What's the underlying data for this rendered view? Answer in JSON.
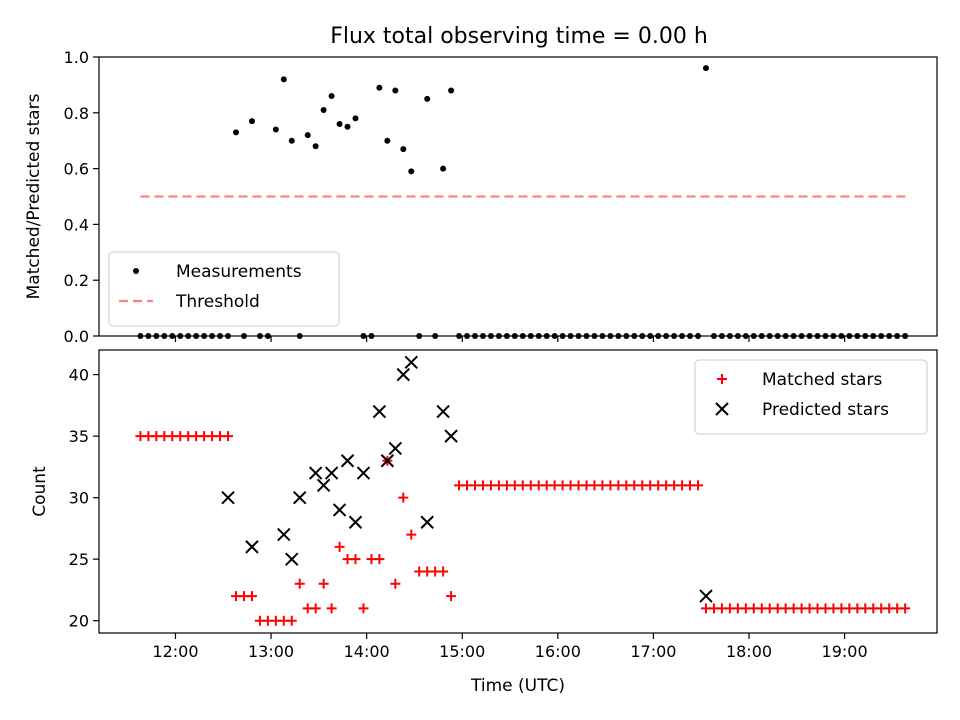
{
  "figure": {
    "title": "Flux total observing time = 0.00 h"
  },
  "chart_data": [
    {
      "type": "scatter",
      "title": "Flux total observing time = 0.00 h",
      "xlabel": "",
      "ylabel": "Matched/Predicted stars",
      "xlim": [
        "11:12",
        "19:58"
      ],
      "ylim": [
        0,
        1.0
      ],
      "yticks": [
        0.0,
        0.2,
        0.4,
        0.6,
        0.8,
        1.0
      ],
      "yticklabels": [
        "0.0",
        "0.2",
        "0.4",
        "0.6",
        "0.8",
        "1.0"
      ],
      "xticks": [
        "12:00",
        "13:00",
        "14:00",
        "15:00",
        "16:00",
        "17:00",
        "18:00",
        "19:00"
      ],
      "xticklabels": [],
      "legend": {
        "placement": "lower-left"
      },
      "series": [
        {
          "name": "Measurements",
          "kind": "scatter",
          "marker": "dot",
          "color": "#000000",
          "x": [
            "11:38",
            "11:43",
            "11:48",
            "11:53",
            "11:58",
            "12:03",
            "12:08",
            "12:13",
            "12:18",
            "12:23",
            "12:28",
            "12:33",
            "12:38",
            "12:43",
            "12:48",
            "12:53",
            "12:58",
            "13:03",
            "13:08",
            "13:13",
            "13:18",
            "13:23",
            "13:28",
            "13:33",
            "13:38",
            "13:43",
            "13:48",
            "13:53",
            "13:58",
            "14:03",
            "14:08",
            "14:13",
            "14:18",
            "14:23",
            "14:28",
            "14:33",
            "14:38",
            "14:43",
            "14:48",
            "14:53",
            "14:58",
            "15:03",
            "15:08",
            "15:13",
            "15:18",
            "15:23",
            "15:28",
            "15:33",
            "15:38",
            "15:43",
            "15:48",
            "15:53",
            "15:58",
            "16:03",
            "16:08",
            "16:13",
            "16:18",
            "16:23",
            "16:28",
            "16:33",
            "16:38",
            "16:43",
            "16:48",
            "16:53",
            "16:58",
            "17:03",
            "17:08",
            "17:13",
            "17:18",
            "17:23",
            "17:28",
            "17:33",
            "17:38",
            "17:43",
            "17:48",
            "17:53",
            "17:58",
            "18:03",
            "18:08",
            "18:13",
            "18:18",
            "18:23",
            "18:28",
            "18:33",
            "18:38",
            "18:43",
            "18:48",
            "18:53",
            "18:58",
            "19:03",
            "19:08",
            "19:13",
            "19:18",
            "19:23",
            "19:28",
            "19:33",
            "19:38"
          ],
          "y": [
            0,
            0,
            0,
            0,
            0,
            0,
            0,
            0,
            0,
            0,
            0,
            0,
            0.73,
            0,
            0.77,
            0,
            0,
            0.74,
            0.92,
            0.7,
            0,
            0.72,
            0.68,
            0.81,
            0.86,
            0.76,
            0.75,
            0.78,
            0,
            0,
            0.89,
            0.7,
            0.88,
            0.67,
            0.59,
            0,
            0.85,
            0,
            0.6,
            0.88,
            0,
            0,
            0,
            0,
            0,
            0,
            0,
            0,
            0,
            0,
            0,
            0,
            0,
            0,
            0,
            0,
            0,
            0,
            0,
            0,
            0,
            0,
            0,
            0,
            0,
            0,
            0,
            0,
            0,
            0,
            0,
            0.96,
            0,
            0,
            0,
            0,
            0,
            0,
            0,
            0,
            0,
            0,
            0,
            0,
            0,
            0,
            0,
            0,
            0,
            0,
            0,
            0,
            0,
            0,
            0,
            0,
            0
          ]
        },
        {
          "name": "Threshold",
          "kind": "line",
          "style": "dashed",
          "color": "#ff8080",
          "x": [
            "11:38",
            "19:38"
          ],
          "y": [
            0.5,
            0.5
          ]
        }
      ]
    },
    {
      "type": "scatter",
      "title": "",
      "xlabel": "Time (UTC)",
      "ylabel": "Count",
      "xlim": [
        "11:12",
        "19:58"
      ],
      "ylim": [
        19,
        42
      ],
      "yticks": [
        20,
        25,
        30,
        35,
        40
      ],
      "yticklabels": [
        "20",
        "25",
        "30",
        "35",
        "40"
      ],
      "xticks": [
        "12:00",
        "13:00",
        "14:00",
        "15:00",
        "16:00",
        "17:00",
        "18:00",
        "19:00"
      ],
      "xticklabels": [
        "12:00",
        "13:00",
        "14:00",
        "15:00",
        "16:00",
        "17:00",
        "18:00",
        "19:00"
      ],
      "legend": {
        "placement": "top-right"
      },
      "series": [
        {
          "name": "Matched stars",
          "kind": "scatter",
          "marker": "plus",
          "color": "#ff0000",
          "x": [
            "11:38",
            "11:43",
            "11:48",
            "11:53",
            "11:58",
            "12:03",
            "12:08",
            "12:13",
            "12:18",
            "12:23",
            "12:28",
            "12:33",
            "12:38",
            "12:43",
            "12:48",
            "12:53",
            "12:58",
            "13:03",
            "13:08",
            "13:13",
            "13:18",
            "13:23",
            "13:28",
            "13:33",
            "13:38",
            "13:43",
            "13:48",
            "13:53",
            "13:58",
            "14:03",
            "14:08",
            "14:13",
            "14:18",
            "14:23",
            "14:28",
            "14:33",
            "14:38",
            "14:43",
            "14:48",
            "14:53",
            "14:58",
            "15:03",
            "15:08",
            "15:13",
            "15:18",
            "15:23",
            "15:28",
            "15:33",
            "15:38",
            "15:43",
            "15:48",
            "15:53",
            "15:58",
            "16:03",
            "16:08",
            "16:13",
            "16:18",
            "16:23",
            "16:28",
            "16:33",
            "16:38",
            "16:43",
            "16:48",
            "16:53",
            "16:58",
            "17:03",
            "17:08",
            "17:13",
            "17:18",
            "17:23",
            "17:28",
            "17:33",
            "17:38",
            "17:43",
            "17:48",
            "17:53",
            "17:58",
            "18:03",
            "18:08",
            "18:13",
            "18:18",
            "18:23",
            "18:28",
            "18:33",
            "18:38",
            "18:43",
            "18:48",
            "18:53",
            "18:58",
            "19:03",
            "19:08",
            "19:13",
            "19:18",
            "19:23",
            "19:28",
            "19:33",
            "19:38"
          ],
          "y": [
            35,
            35,
            35,
            35,
            35,
            35,
            35,
            35,
            35,
            35,
            35,
            35,
            22,
            22,
            22,
            20,
            20,
            20,
            20,
            20,
            23,
            21,
            21,
            23,
            21,
            26,
            25,
            25,
            21,
            25,
            25,
            33,
            23,
            30,
            27,
            24,
            24,
            24,
            24,
            22,
            31,
            31,
            31,
            31,
            31,
            31,
            31,
            31,
            31,
            31,
            31,
            31,
            31,
            31,
            31,
            31,
            31,
            31,
            31,
            31,
            31,
            31,
            31,
            31,
            31,
            31,
            31,
            31,
            31,
            31,
            31,
            21,
            21,
            21,
            21,
            21,
            21,
            21,
            21,
            21,
            21,
            21,
            21,
            21,
            21,
            21,
            21,
            21,
            21,
            21,
            21,
            21,
            21,
            21,
            21,
            21,
            21
          ]
        },
        {
          "name": "Predicted stars",
          "kind": "scatter",
          "marker": "x",
          "color": "#000000",
          "x": [
            "12:33",
            "12:48",
            "13:08",
            "13:13",
            "13:18",
            "13:28",
            "13:33",
            "13:38",
            "13:43",
            "13:48",
            "13:53",
            "13:58",
            "14:08",
            "14:13",
            "14:18",
            "14:23",
            "14:28",
            "14:38",
            "14:48",
            "14:53",
            "17:33"
          ],
          "y": [
            30,
            26,
            27,
            25,
            30,
            32,
            31,
            32,
            29,
            33,
            28,
            32,
            37,
            33,
            34,
            40,
            41,
            28,
            37,
            35,
            22
          ]
        }
      ]
    }
  ]
}
